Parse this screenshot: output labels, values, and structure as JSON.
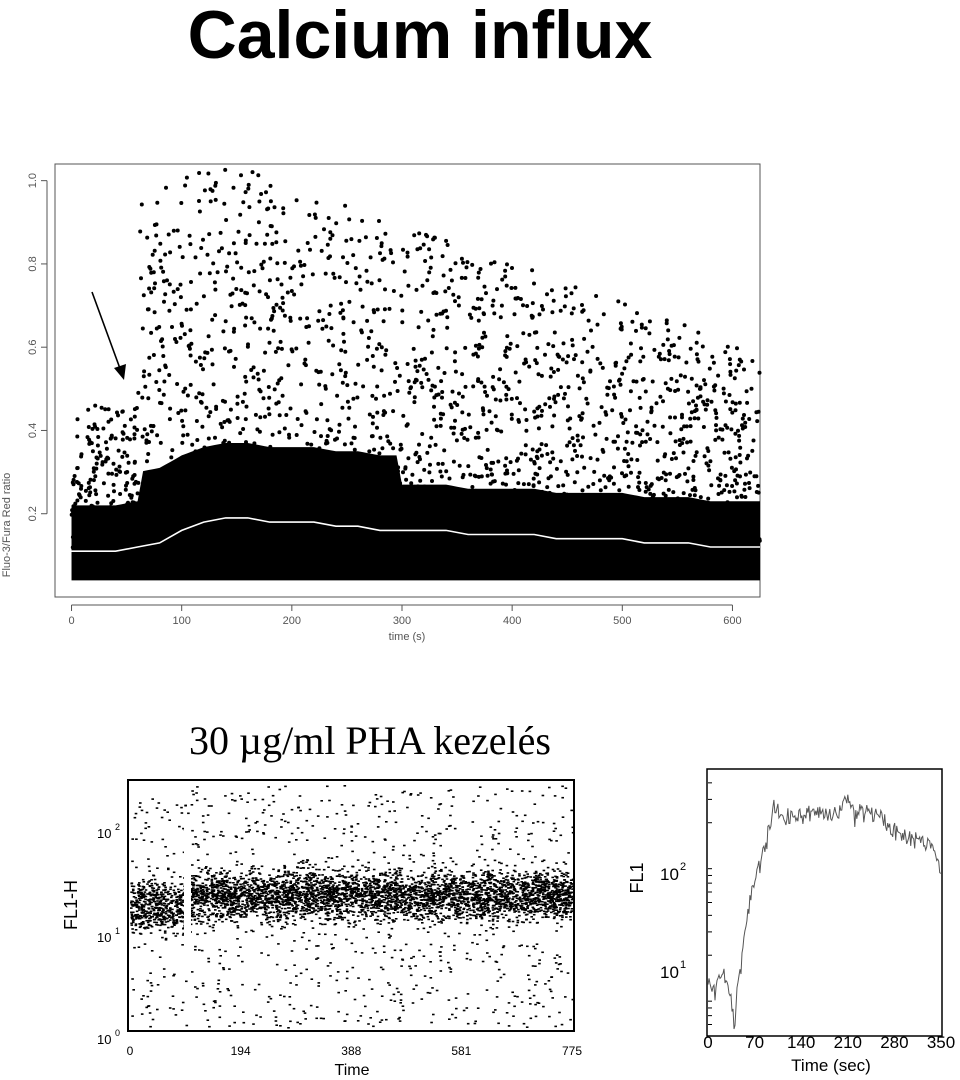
{
  "title": "Calcium influx",
  "subtitle": "30 µg/ml PHA kezelés",
  "chart_data": [
    {
      "type": "scatter",
      "xlabel": "time (s)",
      "ylabel": "Fluo-3/Fura Red ratio",
      "xlim": [
        -15,
        625
      ],
      "ylim": [
        0.0,
        1.04
      ],
      "xticks": [
        "0",
        "100",
        "200",
        "300",
        "400",
        "500",
        "600"
      ],
      "yticks": [
        "0.2",
        "0.4",
        "0.6",
        "0.8",
        "1.0"
      ],
      "annotation": "arrow pointing at the onset of calcium response near t ≈ 40 s",
      "series": [
        {
          "x": [
            0,
            20,
            40,
            60,
            80,
            100,
            120,
            140,
            160,
            180,
            200,
            220,
            240,
            260,
            280,
            300,
            320,
            340,
            360,
            380,
            400,
            420,
            440,
            460,
            480,
            500,
            520,
            540,
            560,
            580,
            600,
            625
          ],
          "y": [
            0.11,
            0.11,
            0.11,
            0.12,
            0.13,
            0.16,
            0.18,
            0.19,
            0.19,
            0.18,
            0.18,
            0.18,
            0.17,
            0.17,
            0.16,
            0.16,
            0.16,
            0.16,
            0.15,
            0.15,
            0.15,
            0.15,
            0.14,
            0.14,
            0.14,
            0.14,
            0.13,
            0.13,
            0.13,
            0.12,
            0.12,
            0.12
          ]
        }
      ]
    },
    {
      "type": "scatter",
      "xlabel": "Time",
      "ylabel": "FL1-H",
      "xlim": [
        0,
        775
      ],
      "y_scale": "log",
      "ylim": [
        1,
        300
      ],
      "xticks": [
        "0",
        "194",
        "388",
        "581",
        "775"
      ],
      "yticks": [
        "10^0",
        "10^1",
        "10^2"
      ],
      "gap_at_time": 105
    },
    {
      "type": "line",
      "xlabel": "Time (sec)",
      "ylabel": "FL1",
      "xlim": [
        0,
        350
      ],
      "y_scale": "log",
      "ylim": [
        5,
        500
      ],
      "xticks": [
        "0",
        "70",
        "140",
        "210",
        "280",
        "350"
      ],
      "yticks": [
        "10^1",
        "10^2"
      ],
      "series": [
        {
          "x": [
            0,
            10,
            20,
            30,
            40,
            50,
            60,
            70,
            80,
            90,
            100,
            110,
            120,
            140,
            160,
            180,
            200,
            210,
            220,
            240,
            260,
            280,
            300,
            320,
            340,
            350
          ],
          "y": [
            13,
            10,
            15,
            12,
            6,
            18,
            40,
            70,
            110,
            160,
            250,
            230,
            220,
            220,
            250,
            220,
            270,
            300,
            230,
            250,
            220,
            170,
            150,
            150,
            130,
            80
          ]
        }
      ]
    }
  ]
}
